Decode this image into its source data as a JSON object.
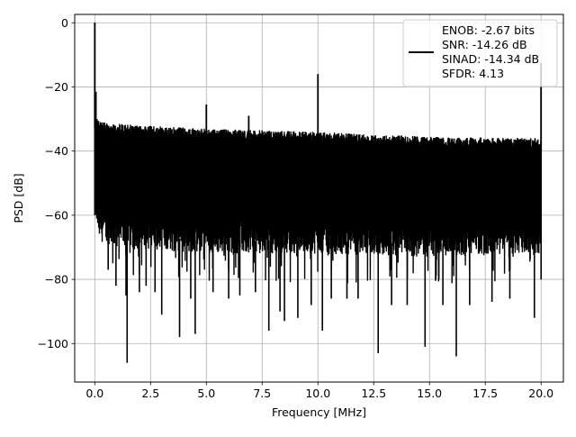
{
  "chart_data": {
    "type": "line",
    "xlabel": "Frequency [MHz]",
    "ylabel": "PSD [dB]",
    "xlim": [
      -0.9,
      21.0
    ],
    "ylim": [
      -112.0,
      2.6
    ],
    "xticks": [
      0.0,
      2.5,
      5.0,
      7.5,
      10.0,
      12.5,
      15.0,
      17.5,
      20.0
    ],
    "xtick_labels": [
      "0.0",
      "2.5",
      "5.0",
      "7.5",
      "10.0",
      "12.5",
      "15.0",
      "17.5",
      "20.0"
    ],
    "yticks": [
      0,
      -20,
      -40,
      -60,
      -80,
      -100
    ],
    "ytick_labels": [
      "0",
      "−20",
      "−40",
      "−60",
      "−80",
      "−100"
    ],
    "grid": true,
    "legend_position": "upper-right",
    "legend_lines": [
      "ENOB: -2.67 bits",
      "SNR: -14.26 dB",
      "SINAD: -14.34 dB",
      "SFDR: 4.13"
    ],
    "series": [
      {
        "color": "#000000",
        "noise_floor": {
          "x_range": [
            0.0,
            20.0
          ],
          "upper_envelope_db": [
            [
              0.0,
              -29
            ],
            [
              0.3,
              -31
            ],
            [
              2,
              -32
            ],
            [
              5,
              -33
            ],
            [
              10,
              -34
            ],
            [
              15,
              -35.5
            ],
            [
              20,
              -36
            ]
          ],
          "lower_envelope_db": [
            [
              0.0,
              -60
            ],
            [
              0.2,
              -68
            ],
            [
              1,
              -70
            ],
            [
              5,
              -72
            ],
            [
              10,
              -72
            ],
            [
              15,
              -73
            ],
            [
              20,
              -72
            ]
          ],
          "deep_nulls": [
            [
              0.6,
              -77
            ],
            [
              0.95,
              -82
            ],
            [
              1.4,
              -85
            ],
            [
              1.45,
              -106
            ],
            [
              2.0,
              -84
            ],
            [
              2.3,
              -82
            ],
            [
              2.7,
              -84
            ],
            [
              3.0,
              -91
            ],
            [
              3.8,
              -98
            ],
            [
              4.3,
              -86
            ],
            [
              4.5,
              -97
            ],
            [
              5.3,
              -84
            ],
            [
              6.0,
              -86
            ],
            [
              6.5,
              -85
            ],
            [
              7.2,
              -84
            ],
            [
              7.8,
              -96
            ],
            [
              8.3,
              -90
            ],
            [
              8.5,
              -93
            ],
            [
              9.1,
              -92
            ],
            [
              9.7,
              -88
            ],
            [
              10.2,
              -96
            ],
            [
              10.6,
              -86
            ],
            [
              11.3,
              -86
            ],
            [
              11.8,
              -86
            ],
            [
              12.7,
              -103
            ],
            [
              13.3,
              -88
            ],
            [
              14.0,
              -88
            ],
            [
              14.8,
              -101
            ],
            [
              15.6,
              -88
            ],
            [
              16.2,
              -104
            ],
            [
              16.8,
              -88
            ],
            [
              17.8,
              -87
            ],
            [
              18.6,
              -86
            ],
            [
              19.7,
              -92
            ]
          ]
        },
        "peaks": [
          {
            "x": 0.0,
            "y": 0.0
          },
          {
            "x": 0.05,
            "y": -21.5
          },
          {
            "x": 5.0,
            "y": -25.5
          },
          {
            "x": 6.9,
            "y": -29.0
          },
          {
            "x": 10.0,
            "y": -16.0
          },
          {
            "x": 20.0,
            "y": -12.5
          }
        ]
      }
    ]
  }
}
